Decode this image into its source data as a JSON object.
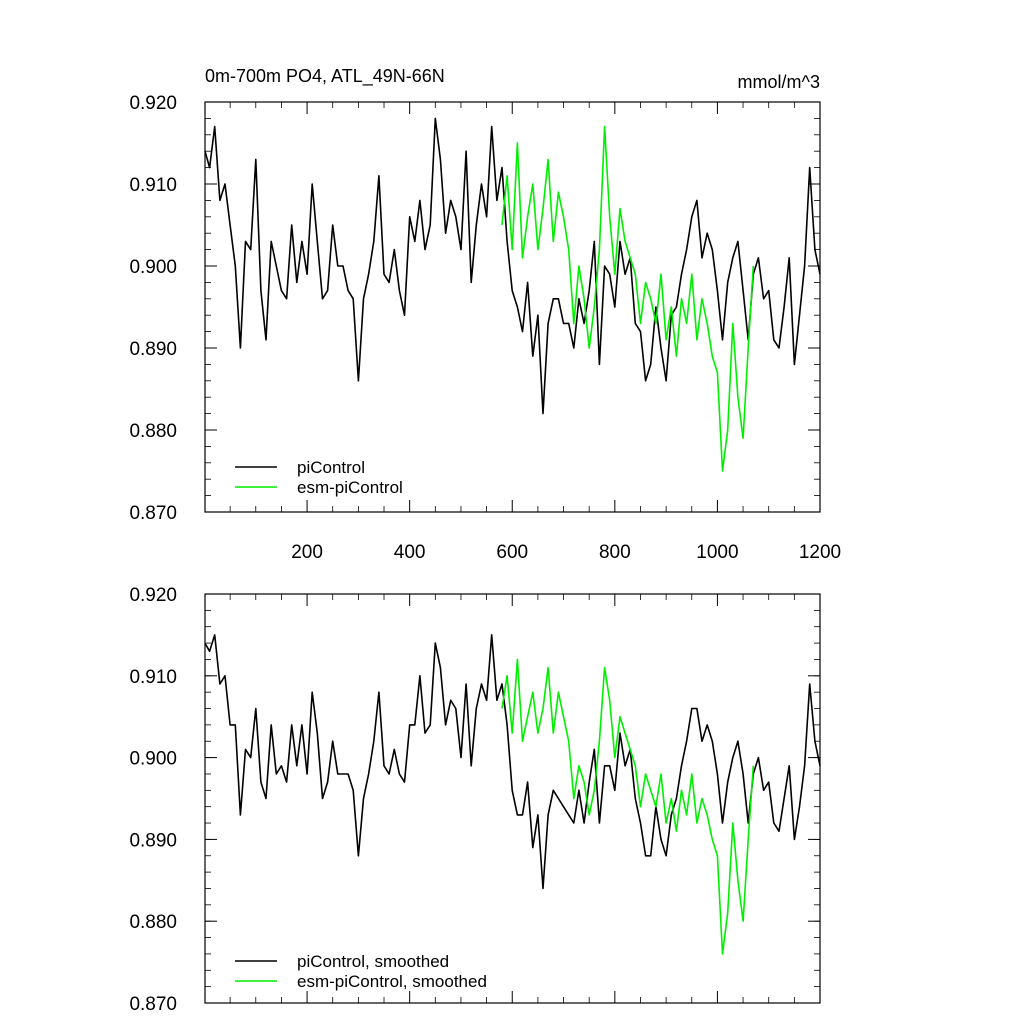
{
  "chart_data": [
    {
      "type": "line",
      "title": "0m-700m PO4, ATL_49N-66N",
      "units": "mmol/m^3",
      "xlim": [
        1,
        1200
      ],
      "ylim": [
        0.87,
        0.92
      ],
      "xticks": [
        200,
        400,
        600,
        800,
        1000,
        1200
      ],
      "xtick_labels": [
        "200",
        "400",
        "600",
        "800",
        "1000",
        "1200"
      ],
      "yticks": [
        0.87,
        0.88,
        0.89,
        0.9,
        0.91,
        0.92
      ],
      "ytick_labels": [
        "0.870",
        "0.880",
        "0.890",
        "0.900",
        "0.910",
        "0.920"
      ],
      "legend_position": "bottom-left",
      "grid": false,
      "series": [
        {
          "name": "piControl",
          "color": "#000000",
          "x": [
            1,
            10,
            20,
            30,
            40,
            50,
            60,
            70,
            80,
            90,
            100,
            110,
            120,
            130,
            140,
            150,
            160,
            170,
            180,
            190,
            200,
            210,
            220,
            230,
            240,
            250,
            260,
            270,
            280,
            290,
            300,
            310,
            320,
            330,
            340,
            350,
            360,
            370,
            380,
            390,
            400,
            410,
            420,
            430,
            440,
            450,
            460,
            470,
            480,
            490,
            500,
            510,
            520,
            530,
            540,
            550,
            560,
            570,
            580,
            590,
            600,
            610,
            620,
            630,
            640,
            650,
            660,
            670,
            680,
            690,
            700,
            710,
            720,
            730,
            740,
            750,
            760,
            770,
            780,
            790,
            800,
            810,
            820,
            830,
            840,
            850,
            860,
            870,
            880,
            890,
            900,
            910,
            920,
            930,
            940,
            950,
            960,
            970,
            980,
            990,
            1000,
            1010,
            1020,
            1030,
            1040,
            1050,
            1060,
            1070,
            1080,
            1090,
            1100,
            1110,
            1120,
            1130,
            1140,
            1150,
            1160,
            1170,
            1180,
            1190,
            1200
          ],
          "values": [
            0.914,
            0.912,
            0.917,
            0.908,
            0.91,
            0.905,
            0.9,
            0.89,
            0.903,
            0.902,
            0.913,
            0.897,
            0.891,
            0.903,
            0.9,
            0.897,
            0.896,
            0.905,
            0.898,
            0.903,
            0.899,
            0.91,
            0.903,
            0.896,
            0.897,
            0.905,
            0.9,
            0.9,
            0.897,
            0.896,
            0.886,
            0.896,
            0.899,
            0.903,
            0.911,
            0.899,
            0.898,
            0.902,
            0.897,
            0.894,
            0.906,
            0.903,
            0.908,
            0.902,
            0.905,
            0.918,
            0.913,
            0.904,
            0.908,
            0.906,
            0.902,
            0.914,
            0.898,
            0.905,
            0.91,
            0.906,
            0.917,
            0.908,
            0.912,
            0.903,
            0.897,
            0.895,
            0.892,
            0.898,
            0.889,
            0.894,
            0.882,
            0.893,
            0.896,
            0.896,
            0.893,
            0.893,
            0.89,
            0.896,
            0.893,
            0.897,
            0.903,
            0.888,
            0.9,
            0.899,
            0.895,
            0.903,
            0.899,
            0.901,
            0.893,
            0.892,
            0.886,
            0.888,
            0.895,
            0.89,
            0.886,
            0.894,
            0.895,
            0.899,
            0.902,
            0.906,
            0.908,
            0.901,
            0.904,
            0.902,
            0.897,
            0.891,
            0.898,
            0.901,
            0.903,
            0.897,
            0.891,
            0.899,
            0.901,
            0.896,
            0.897,
            0.891,
            0.89,
            0.895,
            0.901,
            0.888,
            0.894,
            0.9,
            0.912,
            0.902,
            0.899
          ]
        },
        {
          "name": "esm-piControl",
          "color": "#00ee00",
          "x": [
            580,
            590,
            600,
            610,
            620,
            630,
            640,
            650,
            660,
            670,
            680,
            690,
            700,
            710,
            720,
            730,
            740,
            750,
            760,
            770,
            780,
            790,
            800,
            810,
            820,
            830,
            840,
            850,
            860,
            870,
            880,
            890,
            900,
            910,
            920,
            930,
            940,
            950,
            960,
            970,
            980,
            990,
            1000,
            1010,
            1020,
            1030,
            1040,
            1050,
            1060,
            1070
          ],
          "values": [
            0.905,
            0.911,
            0.902,
            0.915,
            0.901,
            0.906,
            0.91,
            0.902,
            0.907,
            0.913,
            0.903,
            0.909,
            0.906,
            0.902,
            0.893,
            0.9,
            0.896,
            0.89,
            0.895,
            0.902,
            0.917,
            0.906,
            0.899,
            0.907,
            0.903,
            0.901,
            0.899,
            0.893,
            0.898,
            0.896,
            0.893,
            0.899,
            0.891,
            0.895,
            0.889,
            0.896,
            0.893,
            0.899,
            0.891,
            0.896,
            0.893,
            0.889,
            0.887,
            0.875,
            0.88,
            0.893,
            0.884,
            0.879,
            0.89,
            0.9
          ]
        }
      ]
    },
    {
      "type": "line",
      "title": "",
      "xlim": [
        1,
        1200
      ],
      "ylim": [
        0.87,
        0.92
      ],
      "yticks": [
        0.87,
        0.88,
        0.89,
        0.9,
        0.91,
        0.92
      ],
      "ytick_labels": [
        "0.870",
        "0.880",
        "0.890",
        "0.900",
        "0.910",
        "0.920"
      ],
      "legend_position": "bottom-left",
      "grid": false,
      "series": [
        {
          "name": "piControl, smoothed",
          "color": "#000000",
          "x": [
            1,
            10,
            20,
            30,
            40,
            50,
            60,
            70,
            80,
            90,
            100,
            110,
            120,
            130,
            140,
            150,
            160,
            170,
            180,
            190,
            200,
            210,
            220,
            230,
            240,
            250,
            260,
            270,
            280,
            290,
            300,
            310,
            320,
            330,
            340,
            350,
            360,
            370,
            380,
            390,
            400,
            410,
            420,
            430,
            440,
            450,
            460,
            470,
            480,
            490,
            500,
            510,
            520,
            530,
            540,
            550,
            560,
            570,
            580,
            590,
            600,
            610,
            620,
            630,
            640,
            650,
            660,
            670,
            680,
            690,
            700,
            710,
            720,
            730,
            740,
            750,
            760,
            770,
            780,
            790,
            800,
            810,
            820,
            830,
            840,
            850,
            860,
            870,
            880,
            890,
            900,
            910,
            920,
            930,
            940,
            950,
            960,
            970,
            980,
            990,
            1000,
            1010,
            1020,
            1030,
            1040,
            1050,
            1060,
            1070,
            1080,
            1090,
            1100,
            1110,
            1120,
            1130,
            1140,
            1150,
            1160,
            1170,
            1180,
            1190,
            1200
          ],
          "values": [
            0.914,
            0.913,
            0.915,
            0.909,
            0.91,
            0.904,
            0.904,
            0.893,
            0.901,
            0.9,
            0.906,
            0.897,
            0.895,
            0.904,
            0.898,
            0.899,
            0.897,
            0.904,
            0.899,
            0.904,
            0.898,
            0.908,
            0.903,
            0.895,
            0.897,
            0.902,
            0.898,
            0.898,
            0.898,
            0.896,
            0.888,
            0.895,
            0.898,
            0.902,
            0.908,
            0.899,
            0.898,
            0.901,
            0.898,
            0.897,
            0.904,
            0.904,
            0.91,
            0.903,
            0.904,
            0.914,
            0.911,
            0.904,
            0.907,
            0.906,
            0.9,
            0.909,
            0.899,
            0.906,
            0.909,
            0.907,
            0.915,
            0.907,
            0.909,
            0.904,
            0.896,
            0.893,
            0.893,
            0.897,
            0.889,
            0.893,
            0.884,
            0.893,
            0.896,
            0.895,
            0.894,
            0.893,
            0.892,
            0.896,
            0.892,
            0.897,
            0.901,
            0.892,
            0.899,
            0.899,
            0.896,
            0.903,
            0.899,
            0.901,
            0.895,
            0.892,
            0.888,
            0.888,
            0.894,
            0.89,
            0.888,
            0.893,
            0.895,
            0.899,
            0.902,
            0.906,
            0.906,
            0.902,
            0.904,
            0.902,
            0.898,
            0.892,
            0.897,
            0.9,
            0.902,
            0.898,
            0.892,
            0.898,
            0.9,
            0.896,
            0.897,
            0.892,
            0.891,
            0.895,
            0.899,
            0.89,
            0.894,
            0.899,
            0.909,
            0.902,
            0.899
          ]
        },
        {
          "name": "esm-piControl, smoothed",
          "color": "#00ee00",
          "x": [
            580,
            590,
            600,
            610,
            620,
            630,
            640,
            650,
            660,
            670,
            680,
            690,
            700,
            710,
            720,
            730,
            740,
            750,
            760,
            770,
            780,
            790,
            800,
            810,
            820,
            830,
            840,
            850,
            860,
            870,
            880,
            890,
            900,
            910,
            920,
            930,
            940,
            950,
            960,
            970,
            980,
            990,
            1000,
            1010,
            1020,
            1030,
            1040,
            1050,
            1060,
            1070
          ],
          "values": [
            0.906,
            0.91,
            0.903,
            0.912,
            0.902,
            0.905,
            0.908,
            0.903,
            0.906,
            0.911,
            0.903,
            0.908,
            0.905,
            0.902,
            0.895,
            0.899,
            0.897,
            0.893,
            0.896,
            0.902,
            0.911,
            0.907,
            0.9,
            0.905,
            0.903,
            0.901,
            0.899,
            0.894,
            0.898,
            0.896,
            0.894,
            0.898,
            0.892,
            0.895,
            0.891,
            0.896,
            0.893,
            0.898,
            0.892,
            0.895,
            0.893,
            0.89,
            0.888,
            0.876,
            0.881,
            0.892,
            0.885,
            0.88,
            0.89,
            0.899
          ]
        }
      ]
    }
  ]
}
